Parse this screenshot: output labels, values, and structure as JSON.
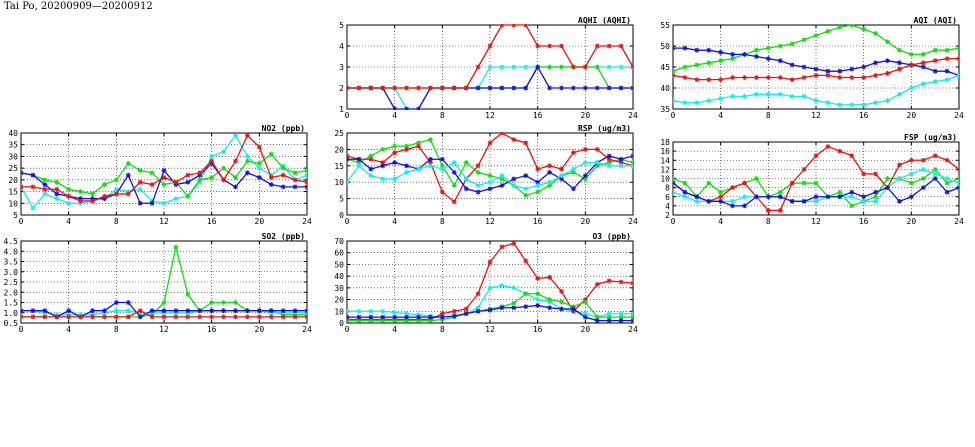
{
  "title": "Tai Po, 20200909—20200912",
  "colors": {
    "red": "#ee1111",
    "green": "#11dd11",
    "blue": "#1111dd",
    "cyan": "#11eeee",
    "grid": "#222222"
  },
  "chart_data": [
    {
      "id": "aqhi",
      "type": "line",
      "title": "AQHI (AQHI)",
      "xlim": [
        0,
        24
      ],
      "xticks": [
        0,
        4,
        8,
        12,
        16,
        20,
        24
      ],
      "ylim": [
        1,
        5
      ],
      "yticks": [
        1,
        2,
        3,
        4,
        5
      ],
      "grid": true,
      "x": [
        0,
        1,
        2,
        3,
        4,
        5,
        6,
        7,
        8,
        9,
        10,
        11,
        12,
        13,
        14,
        15,
        16,
        17,
        18,
        19,
        20,
        21,
        22,
        23,
        24
      ],
      "series": [
        {
          "color": "cyan",
          "values": [
            2,
            2,
            2,
            2,
            2,
            1,
            1,
            2,
            2,
            2,
            2,
            2,
            3,
            3,
            3,
            3,
            3,
            3,
            3,
            3,
            3,
            3,
            3,
            3,
            3
          ]
        },
        {
          "color": "green",
          "values": [
            2,
            2,
            2,
            2,
            2,
            2,
            2,
            2,
            2,
            2,
            2,
            2,
            2,
            2,
            2,
            2,
            3,
            3,
            3,
            3,
            3,
            3,
            2,
            2,
            2
          ]
        },
        {
          "color": "blue",
          "values": [
            2,
            2,
            2,
            2,
            1,
            1,
            1,
            2,
            2,
            2,
            2,
            2,
            2,
            2,
            2,
            2,
            3,
            2,
            2,
            2,
            2,
            2,
            2,
            2,
            2
          ]
        },
        {
          "color": "red",
          "values": [
            2,
            2,
            2,
            2,
            2,
            2,
            2,
            2,
            2,
            2,
            2,
            3,
            4,
            5,
            5,
            5,
            4,
            4,
            4,
            3,
            3,
            4,
            4,
            4,
            3
          ]
        }
      ]
    },
    {
      "id": "aqi",
      "type": "line",
      "title": "AQI (AQI)",
      "xlim": [
        0,
        24
      ],
      "xticks": [
        0,
        4,
        8,
        12,
        16,
        20,
        24
      ],
      "ylim": [
        35,
        55
      ],
      "yticks": [
        35,
        40,
        45,
        50,
        55
      ],
      "grid": true,
      "x": [
        0,
        1,
        2,
        3,
        4,
        5,
        6,
        7,
        8,
        9,
        10,
        11,
        12,
        13,
        14,
        15,
        16,
        17,
        18,
        19,
        20,
        21,
        22,
        23,
        24
      ],
      "series": [
        {
          "color": "green",
          "values": [
            44,
            45,
            45.5,
            46,
            46.5,
            47,
            48,
            49,
            49.5,
            50,
            50.5,
            51.5,
            52.5,
            53.5,
            54.5,
            55,
            54,
            53,
            51,
            49,
            48,
            48,
            49,
            49,
            49.5
          ]
        },
        {
          "color": "blue",
          "values": [
            49.5,
            49.5,
            49,
            49,
            48.5,
            48,
            48,
            47.5,
            47,
            46.5,
            45.5,
            45,
            44.5,
            44,
            44,
            44.5,
            45,
            46,
            46.5,
            46,
            45.5,
            45,
            44,
            44,
            43
          ]
        },
        {
          "color": "red",
          "values": [
            43,
            42.5,
            42,
            42,
            42,
            42.5,
            42.5,
            42.5,
            42.5,
            42.5,
            42,
            42.5,
            43,
            43,
            42.5,
            42.5,
            42.5,
            43,
            43.5,
            44.5,
            45.5,
            46,
            46.5,
            47,
            47
          ]
        },
        {
          "color": "cyan",
          "values": [
            37,
            36.5,
            36.5,
            37,
            37.5,
            38,
            38,
            38.5,
            38.5,
            38.5,
            38,
            38,
            37,
            36.5,
            36,
            36,
            36,
            36.5,
            37,
            38.5,
            40,
            41,
            41.5,
            42,
            43
          ]
        }
      ]
    },
    {
      "id": "no2",
      "type": "line",
      "title": "NO2 (ppb)",
      "xlim": [
        0,
        24
      ],
      "xticks": [
        0,
        4,
        8,
        12,
        16,
        20,
        24
      ],
      "ylim": [
        5,
        40
      ],
      "yticks": [
        5,
        10,
        15,
        20,
        25,
        30,
        35,
        40
      ],
      "grid": true,
      "x": [
        0,
        1,
        2,
        3,
        4,
        5,
        6,
        7,
        8,
        9,
        10,
        11,
        12,
        13,
        14,
        15,
        16,
        17,
        18,
        19,
        20,
        21,
        22,
        23,
        24
      ],
      "series": [
        {
          "color": "cyan",
          "values": [
            17,
            8,
            14,
            12,
            10,
            10,
            11,
            12,
            16,
            15,
            16,
            11,
            10,
            12,
            13,
            19,
            30,
            32,
            39,
            30,
            25,
            22,
            26,
            20,
            22
          ]
        },
        {
          "color": "green",
          "values": [
            23,
            22,
            20,
            19,
            16,
            15,
            14,
            18,
            20,
            27,
            24,
            23,
            18,
            19,
            13,
            20,
            21,
            25,
            21,
            28,
            27,
            31,
            25,
            23,
            24
          ]
        },
        {
          "color": "blue",
          "values": [
            23,
            22,
            18,
            14,
            13,
            12,
            12,
            12,
            14,
            22,
            10,
            10,
            24,
            18,
            19,
            22,
            27,
            20,
            17,
            23,
            21,
            18,
            17,
            17,
            17
          ]
        },
        {
          "color": "red",
          "values": [
            17,
            17,
            16,
            16,
            13,
            11,
            11,
            13,
            14,
            14,
            19,
            18,
            21,
            19,
            22,
            23,
            28,
            20,
            28,
            39,
            34,
            21,
            22,
            20,
            19
          ]
        }
      ]
    },
    {
      "id": "rsp",
      "type": "line",
      "title": "RSP (ug/m3)",
      "xlim": [
        0,
        24
      ],
      "xticks": [
        0,
        4,
        8,
        12,
        16,
        20,
        24
      ],
      "ylim": [
        0,
        25
      ],
      "yticks": [
        0,
        5,
        10,
        15,
        20,
        25
      ],
      "grid": true,
      "x": [
        0,
        1,
        2,
        3,
        4,
        5,
        6,
        7,
        8,
        9,
        10,
        11,
        12,
        13,
        14,
        15,
        16,
        17,
        18,
        19,
        20,
        21,
        22,
        23,
        24
      ],
      "series": [
        {
          "color": "green",
          "values": [
            17,
            16,
            18,
            20,
            21,
            21,
            22,
            23,
            15,
            9,
            16,
            13,
            12,
            11,
            9,
            6,
            7,
            9,
            12,
            13,
            11,
            15,
            16,
            17,
            16
          ]
        },
        {
          "color": "red",
          "values": [
            18,
            17,
            17,
            16,
            19,
            20,
            21,
            16,
            7,
            4,
            11,
            15,
            22,
            25,
            23,
            22,
            14,
            15,
            14,
            19,
            20,
            20,
            17,
            16,
            15
          ]
        },
        {
          "color": "blue",
          "values": [
            17,
            17,
            14,
            15,
            16,
            15,
            14,
            17,
            17,
            13,
            8,
            7,
            8,
            9,
            11,
            12,
            10,
            13,
            11,
            8,
            12,
            16,
            18,
            17,
            18
          ]
        },
        {
          "color": "cyan",
          "values": [
            10,
            15,
            12,
            11,
            11,
            13,
            14,
            15,
            14,
            16,
            11,
            9,
            10,
            12,
            9,
            8,
            9,
            10,
            12,
            14,
            16,
            16,
            15,
            15,
            15
          ]
        }
      ]
    },
    {
      "id": "fsp",
      "type": "line",
      "title": "FSP (ug/m3)",
      "xlim": [
        0,
        24
      ],
      "xticks": [
        0,
        4,
        8,
        12,
        16,
        20,
        24
      ],
      "ylim": [
        2,
        18
      ],
      "yticks": [
        2,
        4,
        6,
        8,
        10,
        12,
        14,
        16,
        18
      ],
      "grid": true,
      "x": [
        0,
        1,
        2,
        3,
        4,
        5,
        6,
        7,
        8,
        9,
        10,
        11,
        12,
        13,
        14,
        15,
        16,
        17,
        18,
        19,
        20,
        21,
        22,
        23,
        24
      ],
      "series": [
        {
          "color": "green",
          "values": [
            10,
            9,
            6,
            9,
            7,
            8,
            9,
            10,
            6,
            7,
            9,
            9,
            9,
            6,
            7,
            4,
            5,
            6,
            10,
            10,
            9,
            10,
            12,
            9,
            10
          ]
        },
        {
          "color": "red",
          "values": [
            9,
            7,
            6,
            5,
            6,
            8,
            9,
            6,
            3,
            3,
            9,
            12,
            15,
            17,
            16,
            15,
            11,
            11,
            8,
            13,
            14,
            14,
            15,
            14,
            12
          ]
        },
        {
          "color": "cyan",
          "values": [
            7,
            6,
            5,
            5,
            5,
            5,
            6,
            6,
            6,
            6,
            5,
            5,
            5,
            6,
            6,
            6,
            5,
            5,
            8,
            10,
            11,
            12,
            11,
            10,
            9
          ]
        },
        {
          "color": "blue",
          "values": [
            9,
            7,
            6,
            5,
            5,
            4,
            4,
            6,
            6,
            6,
            5,
            5,
            6,
            6,
            6,
            7,
            6,
            7,
            8,
            5,
            6,
            8,
            10,
            7,
            8
          ]
        }
      ]
    },
    {
      "id": "so2",
      "type": "line",
      "title": "SO2 (ppb)",
      "xlim": [
        0,
        24
      ],
      "xticks": [
        0,
        4,
        8,
        12,
        16,
        20,
        24
      ],
      "ylim": [
        0.5,
        4.5
      ],
      "yticks": [
        0.5,
        1.0,
        1.5,
        2.0,
        2.5,
        3.0,
        3.5,
        4.0,
        4.5
      ],
      "grid": true,
      "x": [
        0,
        1,
        2,
        3,
        4,
        5,
        6,
        7,
        8,
        9,
        10,
        11,
        12,
        13,
        14,
        15,
        16,
        17,
        18,
        19,
        20,
        21,
        22,
        23,
        24
      ],
      "series": [
        {
          "color": "green",
          "values": [
            0.8,
            0.8,
            0.8,
            0.8,
            0.8,
            0.8,
            0.8,
            0.8,
            0.8,
            0.8,
            0.8,
            0.9,
            1.5,
            4.2,
            1.9,
            1.1,
            1.5,
            1.5,
            1.5,
            1.1,
            1.1,
            1.1,
            0.9,
            0.9,
            0.9
          ]
        },
        {
          "color": "cyan",
          "values": [
            1.1,
            1.1,
            1.0,
            0.9,
            0.9,
            0.9,
            0.9,
            1.0,
            1.1,
            1.1,
            1.0,
            1.0,
            1.0,
            1.0,
            1.0,
            1.1,
            1.1,
            1.1,
            1.1,
            1.1,
            1.1,
            1.0,
            1.0,
            1.0,
            1.0
          ]
        },
        {
          "color": "blue",
          "values": [
            1.1,
            1.1,
            1.1,
            0.8,
            1.1,
            0.8,
            1.1,
            1.1,
            1.5,
            1.5,
            0.8,
            1.1,
            1.1,
            1.1,
            1.1,
            1.1,
            1.1,
            1.1,
            1.1,
            1.1,
            1.1,
            1.1,
            1.1,
            1.1,
            1.1
          ]
        },
        {
          "color": "red",
          "values": [
            0.8,
            0.8,
            0.8,
            0.8,
            0.8,
            0.8,
            0.8,
            0.8,
            0.8,
            0.8,
            1.1,
            0.8,
            0.8,
            0.8,
            0.8,
            0.8,
            0.8,
            0.8,
            0.8,
            0.8,
            0.8,
            0.8,
            0.8,
            0.8,
            0.8
          ]
        }
      ]
    },
    {
      "id": "o3",
      "type": "line",
      "title": "O3 (ppb)",
      "xlim": [
        0,
        24
      ],
      "xticks": [
        0,
        4,
        8,
        12,
        16,
        20,
        24
      ],
      "ylim": [
        0,
        70
      ],
      "yticks": [
        0,
        10,
        20,
        30,
        40,
        50,
        60,
        70
      ],
      "grid": true,
      "x": [
        0,
        1,
        2,
        3,
        4,
        5,
        6,
        7,
        8,
        9,
        10,
        11,
        12,
        13,
        14,
        15,
        16,
        17,
        18,
        19,
        20,
        21,
        22,
        23,
        24
      ],
      "series": [
        {
          "color": "cyan",
          "values": [
            10,
            10,
            10,
            10,
            9,
            8,
            7,
            6,
            5,
            6,
            8,
            13,
            30,
            32,
            30,
            25,
            20,
            18,
            12,
            10,
            8,
            5,
            8,
            8,
            8
          ]
        },
        {
          "color": "red",
          "values": [
            3,
            3,
            3,
            3,
            3,
            3,
            3,
            3,
            8,
            10,
            12,
            25,
            52,
            65,
            68,
            53,
            38,
            39,
            27,
            10,
            20,
            33,
            36,
            35,
            34
          ]
        },
        {
          "color": "green",
          "values": [
            2,
            2,
            2,
            2,
            2,
            2,
            2,
            2,
            3,
            5,
            8,
            10,
            12,
            14,
            17,
            25,
            25,
            20,
            18,
            14,
            18,
            5,
            5,
            5,
            5
          ]
        },
        {
          "color": "blue",
          "values": [
            5,
            5,
            5,
            5,
            5,
            5,
            5,
            5,
            5,
            6,
            8,
            10,
            11,
            13,
            13,
            14,
            15,
            13,
            12,
            12,
            5,
            2,
            2,
            2,
            2
          ]
        }
      ]
    }
  ]
}
